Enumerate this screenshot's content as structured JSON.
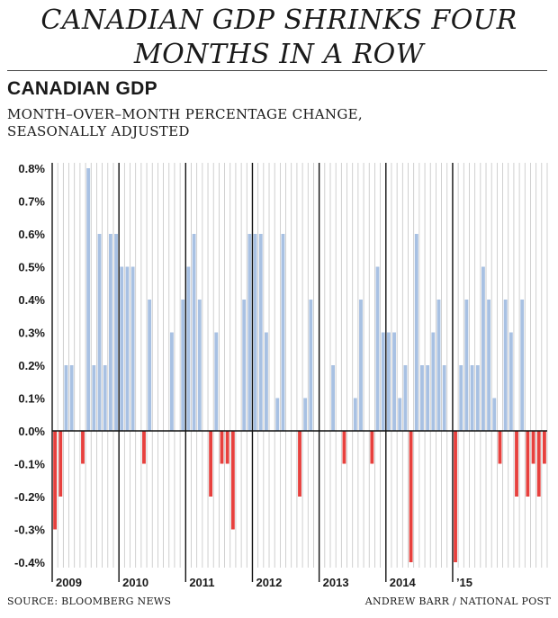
{
  "headline_line1": "CANADIAN GDP SHRINKS FOUR",
  "headline_line2": "MONTHS IN A ROW",
  "colors": {
    "positive": "#a8c1e3",
    "negative": "#e7413e",
    "grid": "#c4c4c4",
    "axis": "#111111"
  },
  "footer": {
    "source": "SOURCE: BLOOMBERG NEWS",
    "credit": "ANDREW BARR / NATIONAL POST"
  },
  "chart_data": {
    "type": "bar",
    "title": "CANADIAN GDP",
    "subtitle": "MONTH–OVER–MONTH PERCENTAGE CHANGE,\nSEASONALLY ADJUSTED",
    "ylabel": "",
    "ylim": [
      -0.4,
      0.8
    ],
    "yticks": [
      "0.8%",
      "0.7%",
      "0.6%",
      "0.5%",
      "0.4%",
      "0.3%",
      "0.2%",
      "0.1%",
      "0.0%",
      "-0.1%",
      "-0.2%",
      "-0.3%",
      "-0.4%"
    ],
    "ytick_values": [
      0.8,
      0.7,
      0.6,
      0.5,
      0.4,
      0.3,
      0.2,
      0.1,
      0.0,
      -0.1,
      -0.2,
      -0.3,
      -0.4
    ],
    "year_labels": [
      "2009",
      "2010",
      "2011",
      "2012",
      "2013",
      "2014",
      "’15"
    ],
    "year_start_index": [
      0,
      12,
      24,
      36,
      48,
      60,
      72
    ],
    "values": [
      -0.3,
      -0.2,
      0.2,
      0.2,
      0.0,
      -0.1,
      0.8,
      0.2,
      0.6,
      0.2,
      0.6,
      0.6,
      0.5,
      0.5,
      0.5,
      0.0,
      -0.1,
      0.4,
      0.0,
      0.0,
      0.0,
      0.3,
      0.0,
      0.4,
      0.5,
      0.6,
      0.4,
      0.0,
      -0.2,
      0.3,
      -0.1,
      -0.1,
      -0.3,
      0.0,
      0.4,
      0.6,
      0.6,
      0.6,
      0.3,
      0.0,
      0.1,
      0.6,
      0.0,
      0.0,
      -0.2,
      0.1,
      0.4,
      0.0,
      0.0,
      0.0,
      0.2,
      0.0,
      -0.1,
      0.0,
      0.1,
      0.4,
      0.0,
      -0.1,
      0.5,
      0.3,
      0.3,
      0.3,
      0.1,
      0.2,
      -0.4,
      0.6,
      0.2,
      0.2,
      0.3,
      0.4,
      0.2,
      0.0,
      -0.4,
      0.2,
      0.4,
      0.2,
      0.2,
      0.5,
      0.4,
      0.1,
      -0.1,
      0.4,
      0.3,
      -0.2,
      0.4,
      -0.2,
      -0.1,
      -0.2,
      -0.1
    ]
  }
}
